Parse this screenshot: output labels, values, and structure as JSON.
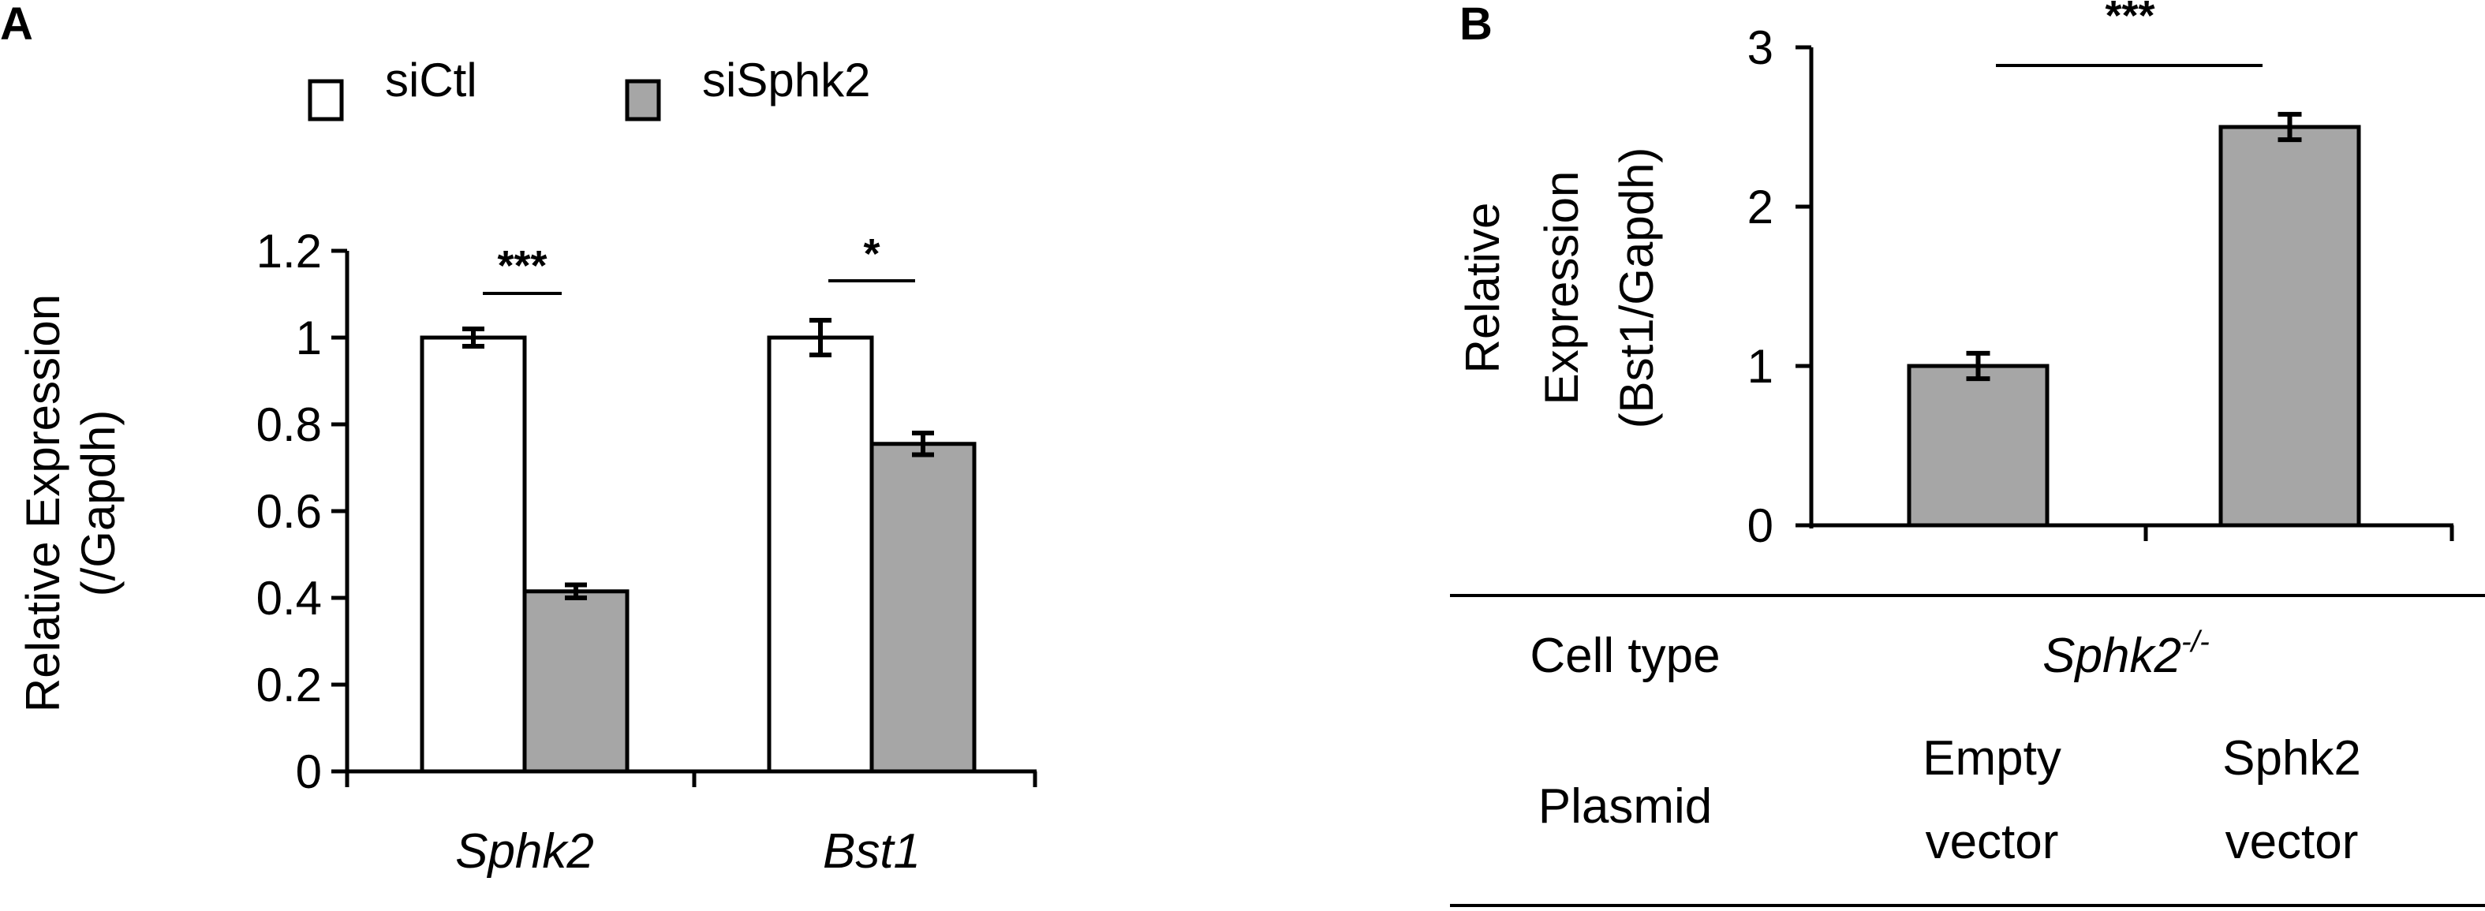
{
  "chart_data": [
    {
      "panel": "A",
      "type": "bar",
      "categories": [
        "Sphk2",
        "Bst1"
      ],
      "series": [
        {
          "name": "siCtl",
          "color": "#ffffff",
          "values": [
            1.0,
            1.0
          ],
          "errors": [
            0.02,
            0.04
          ]
        },
        {
          "name": "siSphk2",
          "color": "#a6a6a6",
          "values": [
            0.415,
            0.755
          ],
          "errors": [
            0.015,
            0.025
          ]
        }
      ],
      "ylabel_line1": "Relative Expression",
      "ylabel_line2": "(/Gapdh)",
      "ylim": [
        0,
        1.2
      ],
      "yticks": [
        "0",
        "0.2",
        "0.4",
        "0.6",
        "0.8",
        "1",
        "1.2"
      ],
      "significance": [
        "***",
        "*"
      ],
      "legend_placement": "top"
    },
    {
      "panel": "B",
      "type": "bar",
      "categories": [
        "Empty vector",
        "Sphk2 vector"
      ],
      "series": [
        {
          "color": "#a6a6a6",
          "values": [
            1.0,
            2.5
          ],
          "errors": [
            0.08,
            0.08
          ]
        }
      ],
      "ylabel_line1": "Relative",
      "ylabel_line2": "Expression",
      "ylabel_line3": "(Bst1/Gapdh)",
      "ylim": [
        0,
        3
      ],
      "yticks": [
        "0",
        "1",
        "2",
        "3"
      ],
      "significance": "***",
      "table": {
        "row1_label": "Cell type",
        "row1_value": "Sphk2",
        "row1_sup": "-/-",
        "row2_label": "Plasmid",
        "row2_col1_line1": "Empty",
        "row2_col1_line2": "vector",
        "row2_col2_line1": "Sphk2",
        "row2_col2_line2": "vector"
      }
    }
  ]
}
